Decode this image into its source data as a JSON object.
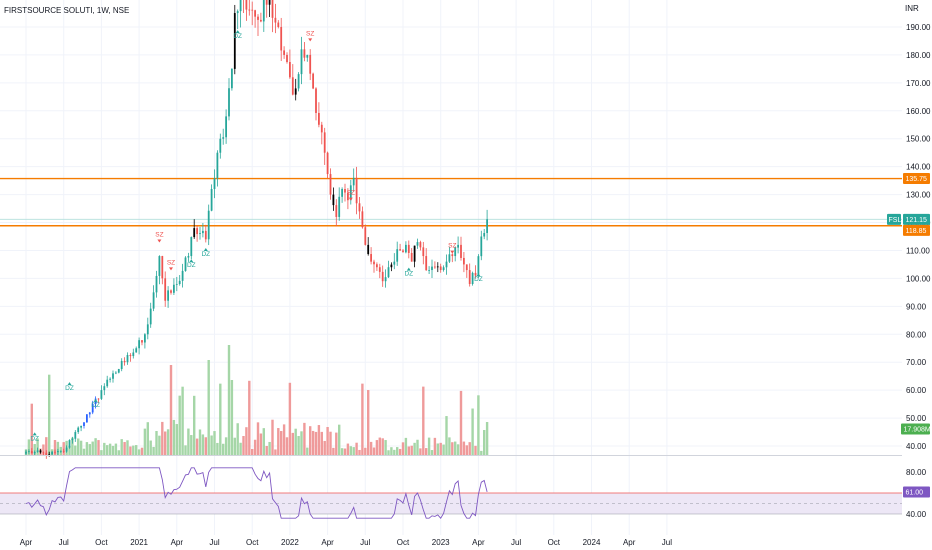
{
  "header": {
    "symbol_line": "FIRSTSOURCE SOLUTI, 1W, NSE",
    "currency": "INR"
  },
  "chart_data": {
    "type": "candlestick",
    "title": "FIRSTSOURCE SOLUTI, 1W, NSE",
    "y_axis_unit": "INR",
    "price_ylim": [
      36,
      200
    ],
    "price_ticks": [
      "190.00",
      "180.00",
      "170.00",
      "160.00",
      "150.00",
      "140.00",
      "130.00",
      "120.00",
      "110.00",
      "100.00",
      "90.00",
      "80.00",
      "70.00",
      "60.00",
      "50.00",
      "40.00"
    ],
    "time_ticks": [
      {
        "label": "Apr",
        "week": 0
      },
      {
        "label": "Jul",
        "week": 13
      },
      {
        "label": "Oct",
        "week": 26
      },
      {
        "label": "2021",
        "week": 39
      },
      {
        "label": "Apr",
        "week": 52
      },
      {
        "label": "Jul",
        "week": 65
      },
      {
        "label": "Oct",
        "week": 78
      },
      {
        "label": "2022",
        "week": 91
      },
      {
        "label": "Apr",
        "week": 104
      },
      {
        "label": "Jul",
        "week": 117
      },
      {
        "label": "Oct",
        "week": 130
      },
      {
        "label": "2023",
        "week": 143
      },
      {
        "label": "Apr",
        "week": 156
      },
      {
        "label": "Jul",
        "week": 169
      },
      {
        "label": "Oct",
        "week": 182
      },
      {
        "label": "2024",
        "week": 195
      },
      {
        "label": "Apr",
        "week": 208
      },
      {
        "label": "Jul",
        "week": 221
      }
    ],
    "last_price": {
      "symbol": "FSL",
      "value": "121.15"
    },
    "levels": [
      {
        "value": 135.75,
        "label": "135.75",
        "color": "#f57c00"
      },
      {
        "value": 118.85,
        "label": "118.85",
        "color": "#f57c00"
      }
    ],
    "volume_label": "17.908M",
    "rsi": {
      "ticks": [
        "80.00",
        "60.00",
        "40.00"
      ],
      "ylim": [
        30,
        90
      ],
      "value_label": "61.00",
      "upper_band": 60,
      "lower_band": 40,
      "midline": 50
    },
    "anchors": [
      {
        "week": 0,
        "close": 38
      },
      {
        "week": 8,
        "close": 37
      },
      {
        "week": 13,
        "close": 38
      },
      {
        "week": 17,
        "close": 45
      },
      {
        "week": 22,
        "close": 52
      },
      {
        "week": 26,
        "close": 60
      },
      {
        "week": 30,
        "close": 66
      },
      {
        "week": 34,
        "close": 70
      },
      {
        "week": 38,
        "close": 75
      },
      {
        "week": 41,
        "close": 80
      },
      {
        "week": 44,
        "close": 95
      },
      {
        "week": 46,
        "close": 108
      },
      {
        "week": 48,
        "close": 92
      },
      {
        "week": 52,
        "close": 98
      },
      {
        "week": 56,
        "close": 108
      },
      {
        "week": 58,
        "close": 118
      },
      {
        "week": 62,
        "close": 114
      },
      {
        "week": 64,
        "close": 132
      },
      {
        "week": 66,
        "close": 145
      },
      {
        "week": 69,
        "close": 158
      },
      {
        "week": 71,
        "close": 175
      },
      {
        "week": 72,
        "close": 195
      },
      {
        "week": 75,
        "close": 200
      },
      {
        "week": 78,
        "close": 196
      },
      {
        "week": 81,
        "close": 192
      },
      {
        "week": 84,
        "close": 202
      },
      {
        "week": 87,
        "close": 190
      },
      {
        "week": 89,
        "close": 180
      },
      {
        "week": 91,
        "close": 172
      },
      {
        "week": 93,
        "close": 168
      },
      {
        "week": 95,
        "close": 182
      },
      {
        "week": 97,
        "close": 180
      },
      {
        "week": 99,
        "close": 168
      },
      {
        "week": 101,
        "close": 155
      },
      {
        "week": 103,
        "close": 145
      },
      {
        "week": 105,
        "close": 130
      },
      {
        "week": 107,
        "close": 122
      },
      {
        "week": 109,
        "close": 132
      },
      {
        "week": 111,
        "close": 128
      },
      {
        "week": 113,
        "close": 136
      },
      {
        "week": 115,
        "close": 124
      },
      {
        "week": 117,
        "close": 112
      },
      {
        "week": 119,
        "close": 106
      },
      {
        "week": 121,
        "close": 104
      },
      {
        "week": 123,
        "close": 99
      },
      {
        "week": 125,
        "close": 104
      },
      {
        "week": 127,
        "close": 106
      },
      {
        "week": 129,
        "close": 110
      },
      {
        "week": 131,
        "close": 112
      },
      {
        "week": 133,
        "close": 106
      },
      {
        "week": 135,
        "close": 113
      },
      {
        "week": 137,
        "close": 108
      },
      {
        "week": 139,
        "close": 103
      },
      {
        "week": 141,
        "close": 104
      },
      {
        "week": 143,
        "close": 103
      },
      {
        "week": 145,
        "close": 106
      },
      {
        "week": 147,
        "close": 108
      },
      {
        "week": 149,
        "close": 112
      },
      {
        "week": 151,
        "close": 105
      },
      {
        "week": 153,
        "close": 98
      },
      {
        "week": 155,
        "close": 101
      },
      {
        "week": 157,
        "close": 115
      },
      {
        "week": 159,
        "close": 121.15
      }
    ],
    "markers": [
      {
        "week": 3,
        "price": 42,
        "text": "DZ",
        "kind": "demand"
      },
      {
        "week": 15,
        "price": 60,
        "text": "DZ",
        "kind": "demand"
      },
      {
        "week": 24,
        "price": 54,
        "text": "DZ",
        "kind": "demand"
      },
      {
        "week": 46,
        "price": 115,
        "text": "SZ",
        "kind": "supply"
      },
      {
        "week": 50,
        "price": 105,
        "text": "SZ",
        "kind": "supply"
      },
      {
        "week": 57,
        "price": 104,
        "text": "DZ",
        "kind": "demand"
      },
      {
        "week": 62,
        "price": 108,
        "text": "DZ",
        "kind": "demand"
      },
      {
        "week": 73,
        "price": 186,
        "text": "DZ",
        "kind": "demand"
      },
      {
        "week": 98,
        "price": 187,
        "text": "SZ",
        "kind": "supply"
      },
      {
        "week": 112,
        "price": 130,
        "text": "SZ",
        "kind": "supply"
      },
      {
        "week": 132,
        "price": 101,
        "text": "DZ",
        "kind": "demand"
      },
      {
        "week": 147,
        "price": 111,
        "text": "SZ",
        "kind": "supply"
      },
      {
        "week": 156,
        "price": 99,
        "text": "DZ",
        "kind": "demand"
      }
    ]
  },
  "colors": {
    "up": "#26a69a",
    "down": "#ef5350",
    "up_volume": "#a5d6a7",
    "down_volume": "#ef9a9a",
    "rsi_line": "#7e57c2",
    "rsi_band_fill": "#ede7f6",
    "rsi_upper_line": "#ef5350",
    "grid": "#f0f3fa",
    "text": "#131722",
    "demand_text": "#26a69a",
    "supply_text": "#ef5350",
    "dark_candle": "#000000",
    "blue_candle": "#2962ff"
  }
}
